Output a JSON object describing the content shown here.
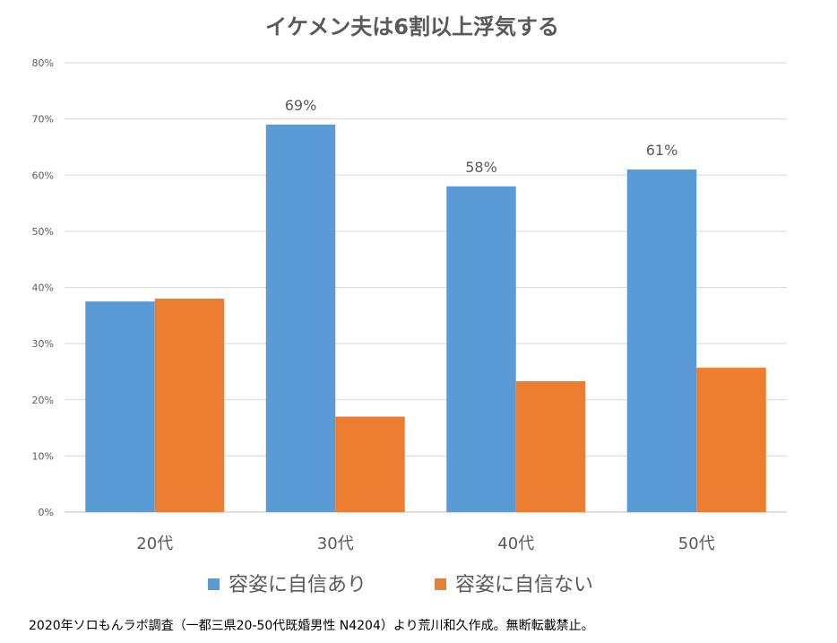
{
  "chart_data": {
    "type": "bar",
    "title": "イケメン夫は6割以上浮気する",
    "categories": [
      "20代",
      "30代",
      "40代",
      "50代"
    ],
    "series": [
      {
        "name": "容姿に自信あり",
        "color": "#5b9bd5",
        "values": [
          37.5,
          69,
          58,
          61
        ],
        "labels": [
          "",
          "69%",
          "58%",
          "61%"
        ]
      },
      {
        "name": "容姿に自信ない",
        "color": "#ed7d31",
        "values": [
          38,
          17,
          23.3,
          25.7
        ],
        "labels": [
          "",
          "",
          "",
          ""
        ]
      }
    ],
    "ylim": [
      0,
      80
    ],
    "yticks": [
      0,
      10,
      20,
      30,
      40,
      50,
      60,
      70,
      80
    ],
    "ytick_labels": [
      "0%",
      "10%",
      "20%",
      "30%",
      "40%",
      "50%",
      "60%",
      "70%",
      "80%"
    ],
    "legend_position": "bottom",
    "grid": true,
    "xlabel": "",
    "ylabel": ""
  },
  "footnote": "2020年ソロもんラボ調査（一都三県20-50代既婚男性 N4204）より荒川和久作成。無断転載禁止。"
}
